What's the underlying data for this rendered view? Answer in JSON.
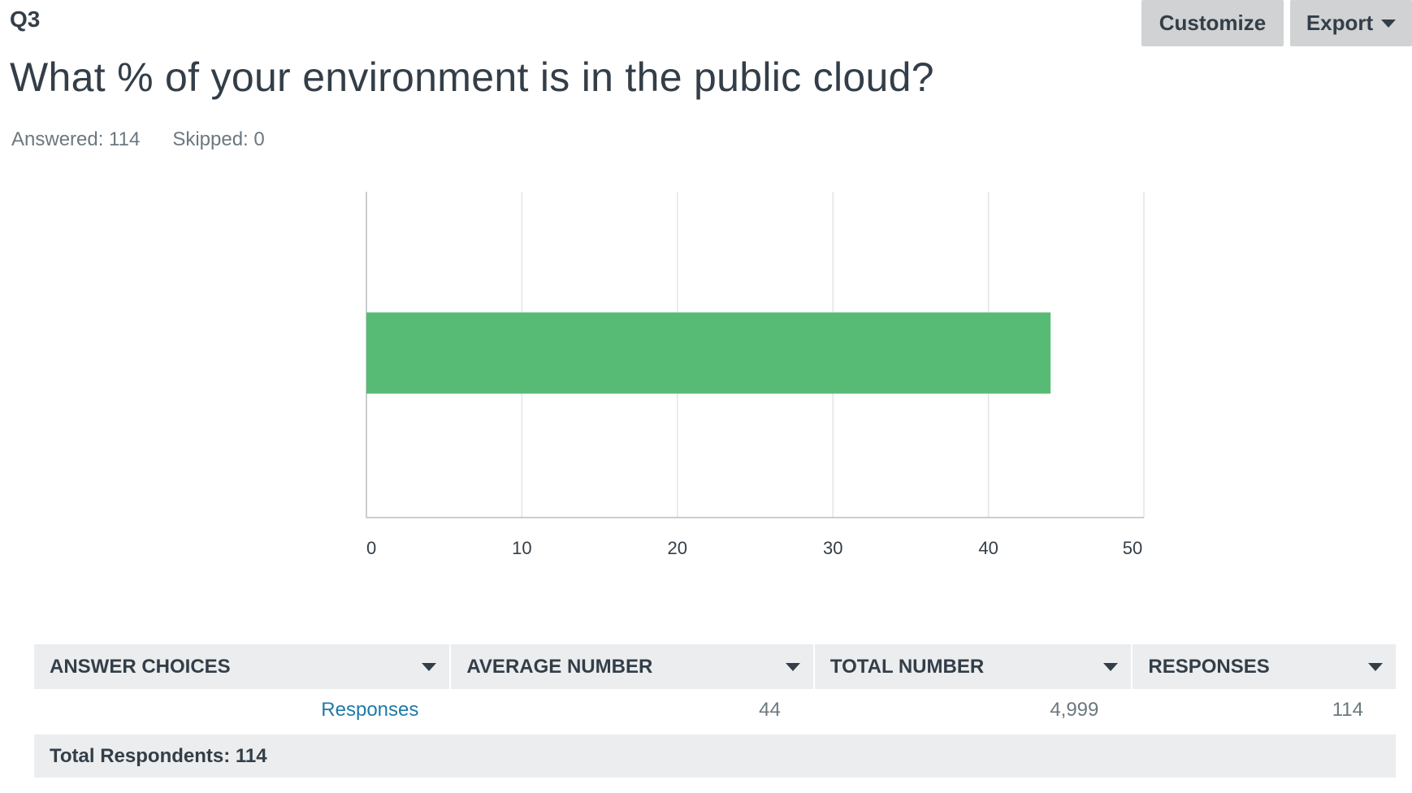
{
  "question": {
    "number": "Q3",
    "title": "What % of your environment is in the public cloud?",
    "answered_label": "Answered: 114",
    "skipped_label": "Skipped: 0"
  },
  "toolbar": {
    "customize_label": "Customize",
    "export_label": "Export"
  },
  "chart_data": {
    "type": "bar",
    "orientation": "horizontal",
    "categories": [
      "Responses"
    ],
    "values": [
      44
    ],
    "xlim": [
      0,
      50
    ],
    "xticks": [
      "0",
      "10",
      "20",
      "30",
      "40",
      "50"
    ],
    "grid": true,
    "bar_color": "#57bb76"
  },
  "table": {
    "headers": [
      "ANSWER CHOICES",
      "AVERAGE NUMBER",
      "TOTAL NUMBER",
      "RESPONSES"
    ],
    "rows": [
      {
        "choice": "Responses",
        "average": "44",
        "total": "4,999",
        "responses": "114"
      }
    ],
    "footer": "Total Respondents: 114"
  },
  "colors": {
    "accent_green": "#57bb76",
    "link_blue": "#1f7aa8",
    "header_bg": "#ebedee",
    "button_bg": "#d0d2d3"
  }
}
